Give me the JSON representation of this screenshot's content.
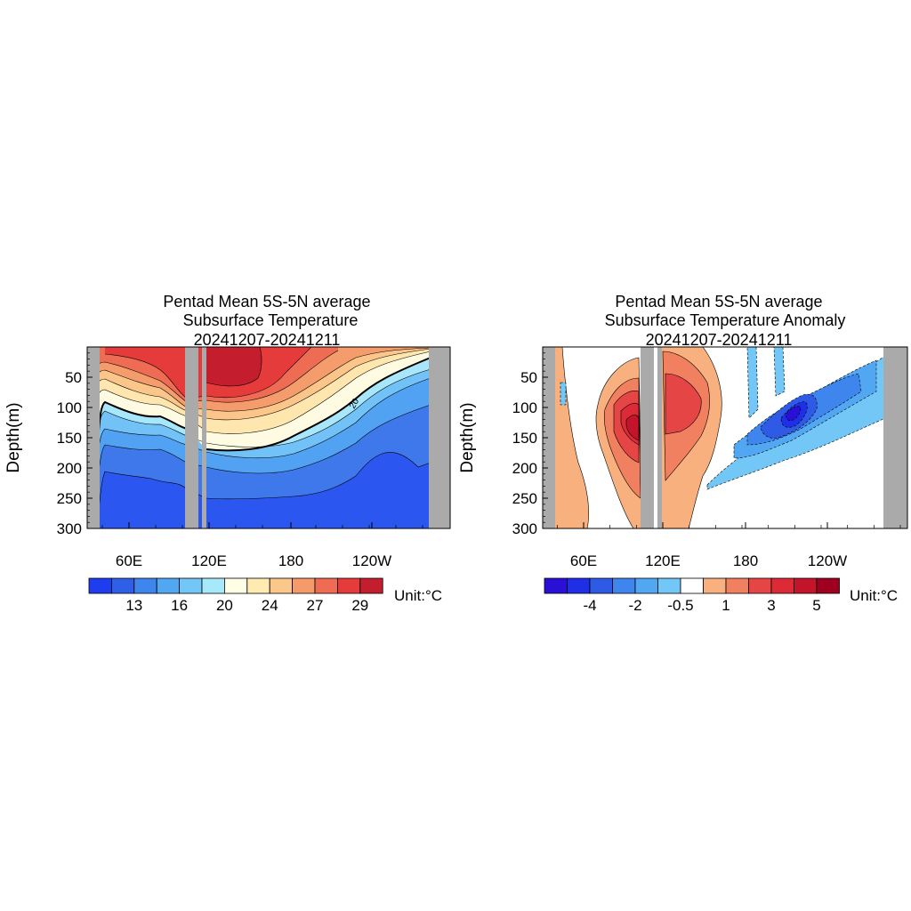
{
  "chart_data": [
    {
      "type": "heatmap",
      "title": [
        "Pentad Mean 5S-5N average",
        "Subsurface Temperature",
        "20241207-20241211"
      ],
      "ylabel": "Depth(m)",
      "x_ticks": [
        "60E",
        "120E",
        "180",
        "120W"
      ],
      "y_ticks": [
        "50",
        "100",
        "150",
        "200",
        "250",
        "300"
      ],
      "ylim": [
        300,
        0
      ],
      "contour_label": "20",
      "colorbar": {
        "colors": [
          "#1e3cf0",
          "#2f5fe6",
          "#3f85ee",
          "#52a7f3",
          "#72c7f7",
          "#a7e8fb",
          "#ffffe6",
          "#ffeab2",
          "#fcc78b",
          "#f59b6b",
          "#ee6b54",
          "#e63b3b",
          "#c41e2e"
        ],
        "labels": [
          "13",
          "16",
          "20",
          "24",
          "27",
          "29"
        ],
        "unit": "Unit:°C"
      }
    },
    {
      "type": "heatmap",
      "title": [
        "Pentad Mean 5S-5N average",
        "Subsurface Temperature Anomaly",
        "20241207-20241211"
      ],
      "ylabel": "Depth(m)",
      "x_ticks": [
        "60E",
        "120E",
        "180",
        "120W"
      ],
      "y_ticks": [
        "50",
        "100",
        "150",
        "200",
        "250",
        "300"
      ],
      "ylim": [
        300,
        0
      ],
      "colorbar": {
        "colors": [
          "#2a10d6",
          "#1e2fe6",
          "#2e5ae6",
          "#3f85ee",
          "#52a7f3",
          "#72c7f7",
          "#ffffff",
          "#f9b07f",
          "#f08060",
          "#e64545",
          "#dc2a36",
          "#c4142c",
          "#a00020"
        ],
        "labels": [
          "-4",
          "-2",
          "-0.5",
          "1",
          "3",
          "5"
        ],
        "unit": "Unit:°C"
      }
    }
  ]
}
